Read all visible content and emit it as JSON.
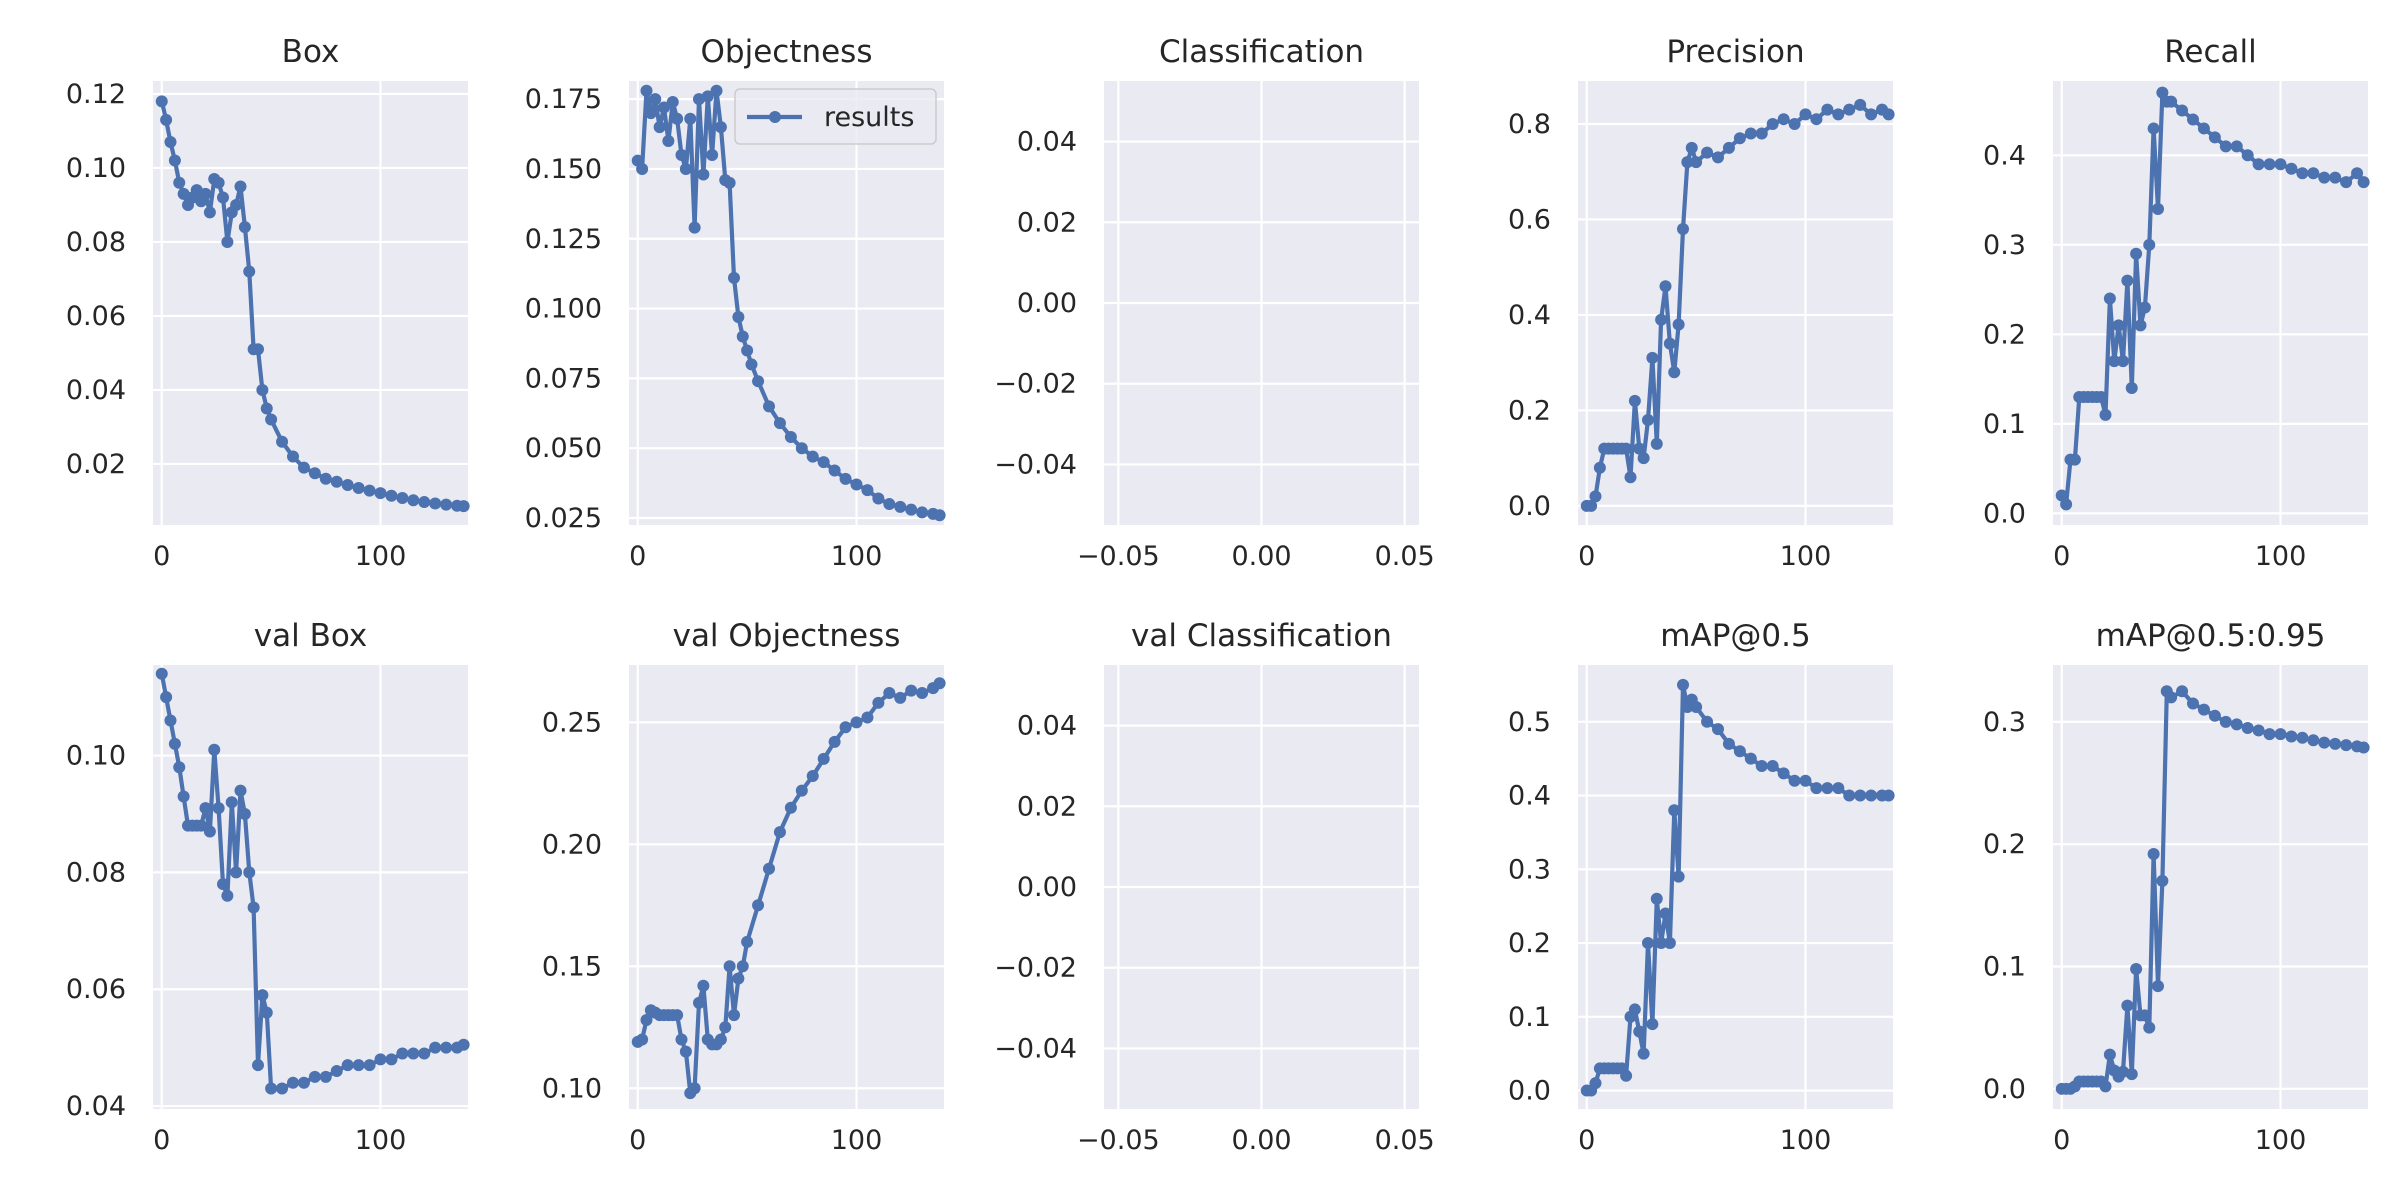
{
  "chart_data": [
    {
      "type": "line",
      "title": "Box",
      "xlim": [
        -4,
        140
      ],
      "ylim": [
        0.0035,
        0.1235
      ],
      "xticks": [
        0,
        100
      ],
      "xtick_labels": [
        "0",
        "100"
      ],
      "yticks": [
        0.02,
        0.04,
        0.06,
        0.08,
        0.1,
        0.12
      ],
      "ytick_labels": [
        "0.02",
        "0.04",
        "0.06",
        "0.08",
        "0.10",
        "0.12"
      ],
      "series": [
        {
          "name": "results",
          "x": [
            0,
            2,
            4,
            6,
            8,
            10,
            12,
            14,
            16,
            18,
            20,
            22,
            24,
            26,
            28,
            30,
            32,
            34,
            36,
            38,
            40,
            42,
            44,
            46,
            48,
            50,
            55,
            60,
            65,
            70,
            75,
            80,
            85,
            90,
            95,
            100,
            105,
            110,
            115,
            120,
            125,
            130,
            135,
            138
          ],
          "y": [
            0.118,
            0.113,
            0.107,
            0.102,
            0.096,
            0.093,
            0.09,
            0.092,
            0.094,
            0.091,
            0.093,
            0.088,
            0.097,
            0.096,
            0.092,
            0.08,
            0.088,
            0.09,
            0.095,
            0.084,
            0.072,
            0.051,
            0.051,
            0.04,
            0.035,
            0.032,
            0.026,
            0.022,
            0.019,
            0.0175,
            0.016,
            0.0152,
            0.0143,
            0.0135,
            0.0128,
            0.0121,
            0.0114,
            0.0108,
            0.0102,
            0.0097,
            0.0093,
            0.009,
            0.0087,
            0.0086
          ]
        }
      ]
    },
    {
      "type": "line",
      "title": "Objectness",
      "xlim": [
        -4,
        140
      ],
      "ylim": [
        0.0225,
        0.1815
      ],
      "xticks": [
        0,
        100
      ],
      "xtick_labels": [
        "0",
        "100"
      ],
      "yticks": [
        0.025,
        0.05,
        0.075,
        0.1,
        0.125,
        0.15,
        0.175
      ],
      "ytick_labels": [
        "0.025",
        "0.050",
        "0.075",
        "0.100",
        "0.125",
        "0.150",
        "0.175"
      ],
      "legend": {
        "labels": [
          "results"
        ],
        "position": "upper right"
      },
      "series": [
        {
          "name": "results",
          "x": [
            0,
            2,
            4,
            6,
            8,
            10,
            12,
            14,
            16,
            18,
            20,
            22,
            24,
            26,
            28,
            30,
            32,
            34,
            36,
            38,
            40,
            42,
            44,
            46,
            48,
            50,
            52,
            55,
            60,
            65,
            70,
            75,
            80,
            85,
            90,
            95,
            100,
            105,
            110,
            115,
            120,
            125,
            130,
            135,
            138
          ],
          "y": [
            0.153,
            0.15,
            0.178,
            0.17,
            0.175,
            0.165,
            0.172,
            0.16,
            0.174,
            0.168,
            0.155,
            0.15,
            0.168,
            0.129,
            0.175,
            0.148,
            0.176,
            0.155,
            0.178,
            0.165,
            0.146,
            0.145,
            0.111,
            0.097,
            0.09,
            0.085,
            0.08,
            0.074,
            0.065,
            0.059,
            0.054,
            0.05,
            0.047,
            0.045,
            0.042,
            0.039,
            0.037,
            0.035,
            0.032,
            0.03,
            0.029,
            0.028,
            0.027,
            0.0265,
            0.026
          ]
        }
      ]
    },
    {
      "type": "line",
      "title": "Classification",
      "xlim": [
        -0.055,
        0.055
      ],
      "ylim": [
        -0.055,
        0.055
      ],
      "xticks": [
        -0.05,
        0.0,
        0.05
      ],
      "xtick_labels": [
        "−0.05",
        "0.00",
        "0.05"
      ],
      "yticks": [
        -0.04,
        -0.02,
        0.0,
        0.02,
        0.04
      ],
      "ytick_labels": [
        "−0.04",
        "−0.02",
        "0.00",
        "0.02",
        "0.04"
      ],
      "series": []
    },
    {
      "type": "line",
      "title": "Precision",
      "xlim": [
        -4,
        140
      ],
      "ylim": [
        -0.04,
        0.89
      ],
      "xticks": [
        0,
        100
      ],
      "xtick_labels": [
        "0",
        "100"
      ],
      "yticks": [
        0.0,
        0.2,
        0.4,
        0.6,
        0.8
      ],
      "ytick_labels": [
        "0.0",
        "0.2",
        "0.4",
        "0.6",
        "0.8"
      ],
      "series": [
        {
          "name": "results",
          "x": [
            0,
            2,
            4,
            6,
            8,
            10,
            12,
            14,
            16,
            18,
            20,
            22,
            24,
            26,
            28,
            30,
            32,
            34,
            36,
            38,
            40,
            42,
            44,
            46,
            48,
            50,
            55,
            60,
            65,
            70,
            75,
            80,
            85,
            90,
            95,
            100,
            105,
            110,
            115,
            120,
            125,
            130,
            135,
            138
          ],
          "y": [
            0.0,
            0.0,
            0.02,
            0.08,
            0.12,
            0.12,
            0.12,
            0.12,
            0.12,
            0.12,
            0.06,
            0.22,
            0.12,
            0.1,
            0.18,
            0.31,
            0.13,
            0.39,
            0.46,
            0.34,
            0.28,
            0.38,
            0.58,
            0.72,
            0.75,
            0.72,
            0.74,
            0.73,
            0.75,
            0.77,
            0.78,
            0.78,
            0.8,
            0.81,
            0.8,
            0.82,
            0.81,
            0.83,
            0.82,
            0.83,
            0.84,
            0.82,
            0.83,
            0.82
          ]
        }
      ]
    },
    {
      "type": "line",
      "title": "Recall",
      "xlim": [
        -4,
        140
      ],
      "ylim": [
        -0.013,
        0.483
      ],
      "xticks": [
        0,
        100
      ],
      "xtick_labels": [
        "0",
        "100"
      ],
      "yticks": [
        0.0,
        0.1,
        0.2,
        0.3,
        0.4
      ],
      "ytick_labels": [
        "0.0",
        "0.1",
        "0.2",
        "0.3",
        "0.4"
      ],
      "series": [
        {
          "name": "results",
          "x": [
            0,
            2,
            4,
            6,
            8,
            10,
            12,
            14,
            16,
            18,
            20,
            22,
            24,
            26,
            28,
            30,
            32,
            34,
            36,
            38,
            40,
            42,
            44,
            46,
            48,
            50,
            55,
            60,
            65,
            70,
            75,
            80,
            85,
            90,
            95,
            100,
            105,
            110,
            115,
            120,
            125,
            130,
            135,
            138
          ],
          "y": [
            0.02,
            0.01,
            0.06,
            0.06,
            0.13,
            0.13,
            0.13,
            0.13,
            0.13,
            0.13,
            0.11,
            0.24,
            0.17,
            0.21,
            0.17,
            0.26,
            0.14,
            0.29,
            0.21,
            0.23,
            0.3,
            0.43,
            0.34,
            0.47,
            0.46,
            0.46,
            0.45,
            0.44,
            0.43,
            0.42,
            0.41,
            0.41,
            0.4,
            0.39,
            0.39,
            0.39,
            0.385,
            0.38,
            0.38,
            0.375,
            0.375,
            0.37,
            0.38,
            0.37
          ]
        }
      ]
    },
    {
      "type": "line",
      "title": "val Box",
      "xlim": [
        -4,
        140
      ],
      "ylim": [
        0.0395,
        0.1155
      ],
      "xticks": [
        0,
        100
      ],
      "xtick_labels": [
        "0",
        "100"
      ],
      "yticks": [
        0.04,
        0.06,
        0.08,
        0.1
      ],
      "ytick_labels": [
        "0.04",
        "0.06",
        "0.08",
        "0.10"
      ],
      "series": [
        {
          "name": "results",
          "x": [
            0,
            2,
            4,
            6,
            8,
            10,
            12,
            14,
            16,
            18,
            20,
            22,
            24,
            26,
            28,
            30,
            32,
            34,
            36,
            38,
            40,
            42,
            44,
            46,
            48,
            50,
            55,
            60,
            65,
            70,
            75,
            80,
            85,
            90,
            95,
            100,
            105,
            110,
            115,
            120,
            125,
            130,
            135,
            138
          ],
          "y": [
            0.114,
            0.11,
            0.106,
            0.102,
            0.098,
            0.093,
            0.088,
            0.088,
            0.088,
            0.088,
            0.091,
            0.087,
            0.101,
            0.091,
            0.078,
            0.076,
            0.092,
            0.08,
            0.094,
            0.09,
            0.08,
            0.074,
            0.047,
            0.059,
            0.056,
            0.043,
            0.043,
            0.044,
            0.044,
            0.045,
            0.045,
            0.046,
            0.047,
            0.047,
            0.047,
            0.048,
            0.048,
            0.049,
            0.049,
            0.049,
            0.05,
            0.05,
            0.05,
            0.0505
          ]
        }
      ]
    },
    {
      "type": "line",
      "title": "val Objectness",
      "xlim": [
        -4,
        140
      ],
      "ylim": [
        0.0915,
        0.2735
      ],
      "xticks": [
        0,
        100
      ],
      "xtick_labels": [
        "0",
        "100"
      ],
      "yticks": [
        0.1,
        0.15,
        0.2,
        0.25
      ],
      "ytick_labels": [
        "0.10",
        "0.15",
        "0.20",
        "0.25"
      ],
      "series": [
        {
          "name": "results",
          "x": [
            0,
            2,
            4,
            6,
            8,
            10,
            12,
            14,
            16,
            18,
            20,
            22,
            24,
            26,
            28,
            30,
            32,
            34,
            36,
            38,
            40,
            42,
            44,
            46,
            48,
            50,
            55,
            60,
            65,
            70,
            75,
            80,
            85,
            90,
            95,
            100,
            105,
            110,
            115,
            120,
            125,
            130,
            135,
            138
          ],
          "y": [
            0.119,
            0.12,
            0.128,
            0.132,
            0.131,
            0.13,
            0.13,
            0.13,
            0.13,
            0.13,
            0.12,
            0.115,
            0.098,
            0.1,
            0.135,
            0.142,
            0.12,
            0.118,
            0.118,
            0.12,
            0.125,
            0.15,
            0.13,
            0.145,
            0.15,
            0.16,
            0.175,
            0.19,
            0.205,
            0.215,
            0.222,
            0.228,
            0.235,
            0.242,
            0.248,
            0.25,
            0.252,
            0.258,
            0.262,
            0.26,
            0.263,
            0.262,
            0.264,
            0.266
          ]
        }
      ]
    },
    {
      "type": "line",
      "title": "val Classification",
      "xlim": [
        -0.055,
        0.055
      ],
      "ylim": [
        -0.055,
        0.055
      ],
      "xticks": [
        -0.05,
        0.0,
        0.05
      ],
      "xtick_labels": [
        "−0.05",
        "0.00",
        "0.05"
      ],
      "yticks": [
        -0.04,
        -0.02,
        0.0,
        0.02,
        0.04
      ],
      "ytick_labels": [
        "−0.04",
        "−0.02",
        "0.00",
        "0.02",
        "0.04"
      ],
      "series": []
    },
    {
      "type": "line",
      "title": "mAP@0.5",
      "xlim": [
        -4,
        140
      ],
      "ylim": [
        -0.025,
        0.577
      ],
      "xticks": [
        0,
        100
      ],
      "xtick_labels": [
        "0",
        "100"
      ],
      "yticks": [
        0.0,
        0.1,
        0.2,
        0.3,
        0.4,
        0.5
      ],
      "ytick_labels": [
        "0.0",
        "0.1",
        "0.2",
        "0.3",
        "0.4",
        "0.5"
      ],
      "series": [
        {
          "name": "results",
          "x": [
            0,
            2,
            4,
            6,
            8,
            10,
            12,
            14,
            16,
            18,
            20,
            22,
            24,
            26,
            28,
            30,
            32,
            34,
            36,
            38,
            40,
            42,
            44,
            46,
            48,
            50,
            55,
            60,
            65,
            70,
            75,
            80,
            85,
            90,
            95,
            100,
            105,
            110,
            115,
            120,
            125,
            130,
            135,
            138
          ],
          "y": [
            0.0,
            0.0,
            0.01,
            0.03,
            0.03,
            0.03,
            0.03,
            0.03,
            0.03,
            0.02,
            0.1,
            0.11,
            0.08,
            0.05,
            0.2,
            0.09,
            0.26,
            0.2,
            0.24,
            0.2,
            0.38,
            0.29,
            0.55,
            0.52,
            0.53,
            0.52,
            0.5,
            0.49,
            0.47,
            0.46,
            0.45,
            0.44,
            0.44,
            0.43,
            0.42,
            0.42,
            0.41,
            0.41,
            0.41,
            0.4,
            0.4,
            0.4,
            0.4,
            0.4
          ]
        }
      ]
    },
    {
      "type": "line",
      "title": "mAP@0.5:0.95",
      "xlim": [
        -4,
        140
      ],
      "ylim": [
        -0.0165,
        0.3465
      ],
      "xticks": [
        0,
        100
      ],
      "xtick_labels": [
        "0",
        "100"
      ],
      "yticks": [
        0.0,
        0.1,
        0.2,
        0.3
      ],
      "ytick_labels": [
        "0.0",
        "0.1",
        "0.2",
        "0.3"
      ],
      "series": [
        {
          "name": "results",
          "x": [
            0,
            2,
            4,
            6,
            8,
            10,
            12,
            14,
            16,
            18,
            20,
            22,
            24,
            26,
            28,
            30,
            32,
            34,
            36,
            38,
            40,
            42,
            44,
            46,
            48,
            50,
            55,
            60,
            65,
            70,
            75,
            80,
            85,
            90,
            95,
            100,
            105,
            110,
            115,
            120,
            125,
            130,
            135,
            138
          ],
          "y": [
            0.0,
            0.0,
            0.0,
            0.002,
            0.006,
            0.006,
            0.006,
            0.006,
            0.006,
            0.006,
            0.002,
            0.028,
            0.015,
            0.01,
            0.014,
            0.068,
            0.012,
            0.098,
            0.06,
            0.06,
            0.05,
            0.192,
            0.084,
            0.17,
            0.325,
            0.32,
            0.325,
            0.315,
            0.31,
            0.305,
            0.3,
            0.298,
            0.295,
            0.293,
            0.29,
            0.29,
            0.288,
            0.287,
            0.285,
            0.283,
            0.282,
            0.281,
            0.28,
            0.279
          ]
        }
      ]
    }
  ]
}
